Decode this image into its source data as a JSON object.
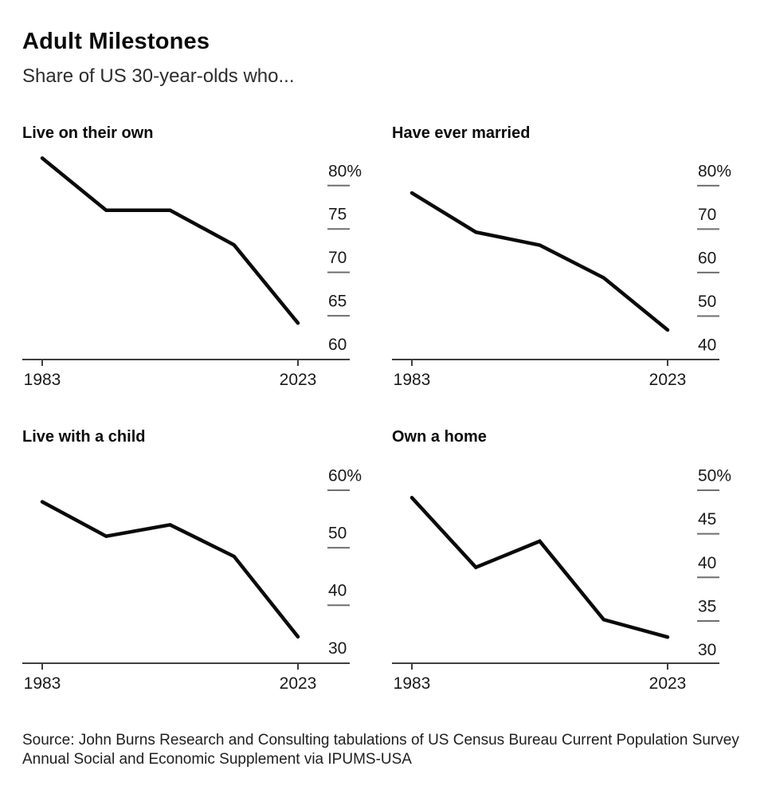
{
  "page": {
    "title": "Adult Milestones",
    "subtitle": "Share of US 30-year-olds who...",
    "source": "Source: John Burns Research and Consulting tabulations of US Census Bureau Current Population Survey Annual Social and Economic Supplement via IPUMS-USA"
  },
  "colors": {
    "line": "#0a0a0a",
    "axis": "#3f3f3f",
    "tick_dash": "#6f6f6f",
    "axis_label": "#1a1a1a",
    "background": "#ffffff"
  },
  "chart_data": [
    {
      "type": "line",
      "title": "Live on their own",
      "x": [
        1983,
        1993,
        2003,
        2013,
        2023
      ],
      "values": [
        81.5,
        75.5,
        75.5,
        71.5,
        62.5
      ],
      "yticks": [
        {
          "label": "80%",
          "value": 80
        },
        {
          "label": "75",
          "value": 75
        },
        {
          "label": "70",
          "value": 70
        },
        {
          "label": "65",
          "value": 65
        },
        {
          "label": "60",
          "value": 60
        }
      ],
      "ylim": [
        58.3,
        82.0
      ],
      "xtick_labels": [
        "1983",
        "2023"
      ],
      "unit": "%",
      "grid": false,
      "legend": "none"
    },
    {
      "type": "line",
      "title": "Have ever married",
      "x": [
        1983,
        1993,
        2003,
        2013,
        2023
      ],
      "values": [
        75,
        66,
        63,
        55.5,
        43.5
      ],
      "yticks": [
        {
          "label": "80%",
          "value": 80
        },
        {
          "label": "70",
          "value": 70
        },
        {
          "label": "60",
          "value": 60
        },
        {
          "label": "50",
          "value": 50
        },
        {
          "label": "40",
          "value": 40
        }
      ],
      "ylim": [
        36.7,
        84.0
      ],
      "xtick_labels": [
        "1983",
        "2023"
      ],
      "unit": "%",
      "grid": false,
      "legend": "none"
    },
    {
      "type": "line",
      "title": "Live with a child",
      "x": [
        1983,
        1993,
        2003,
        2013,
        2023
      ],
      "values": [
        55.5,
        49.5,
        51.5,
        46,
        32
      ],
      "yticks": [
        {
          "label": "60%",
          "value": 60
        },
        {
          "label": "50",
          "value": 50
        },
        {
          "label": "40",
          "value": 40
        },
        {
          "label": "30",
          "value": 30
        }
      ],
      "ylim": [
        27.4,
        63.2
      ],
      "xtick_labels": [
        "1983",
        "2023"
      ],
      "unit": "%",
      "grid": false,
      "legend": "none"
    },
    {
      "type": "line",
      "title": "Own a home",
      "x": [
        1983,
        1993,
        2003,
        2013,
        2023
      ],
      "values": [
        47.5,
        39.5,
        42.5,
        33.5,
        31.5
      ],
      "yticks": [
        {
          "label": "50%",
          "value": 50
        },
        {
          "label": "45",
          "value": 45
        },
        {
          "label": "40",
          "value": 40
        },
        {
          "label": "35",
          "value": 35
        },
        {
          "label": "30",
          "value": 30
        }
      ],
      "ylim": [
        28.5,
        52.1
      ],
      "xtick_labels": [
        "1983",
        "2023"
      ],
      "unit": "%",
      "grid": false,
      "legend": "none"
    }
  ]
}
